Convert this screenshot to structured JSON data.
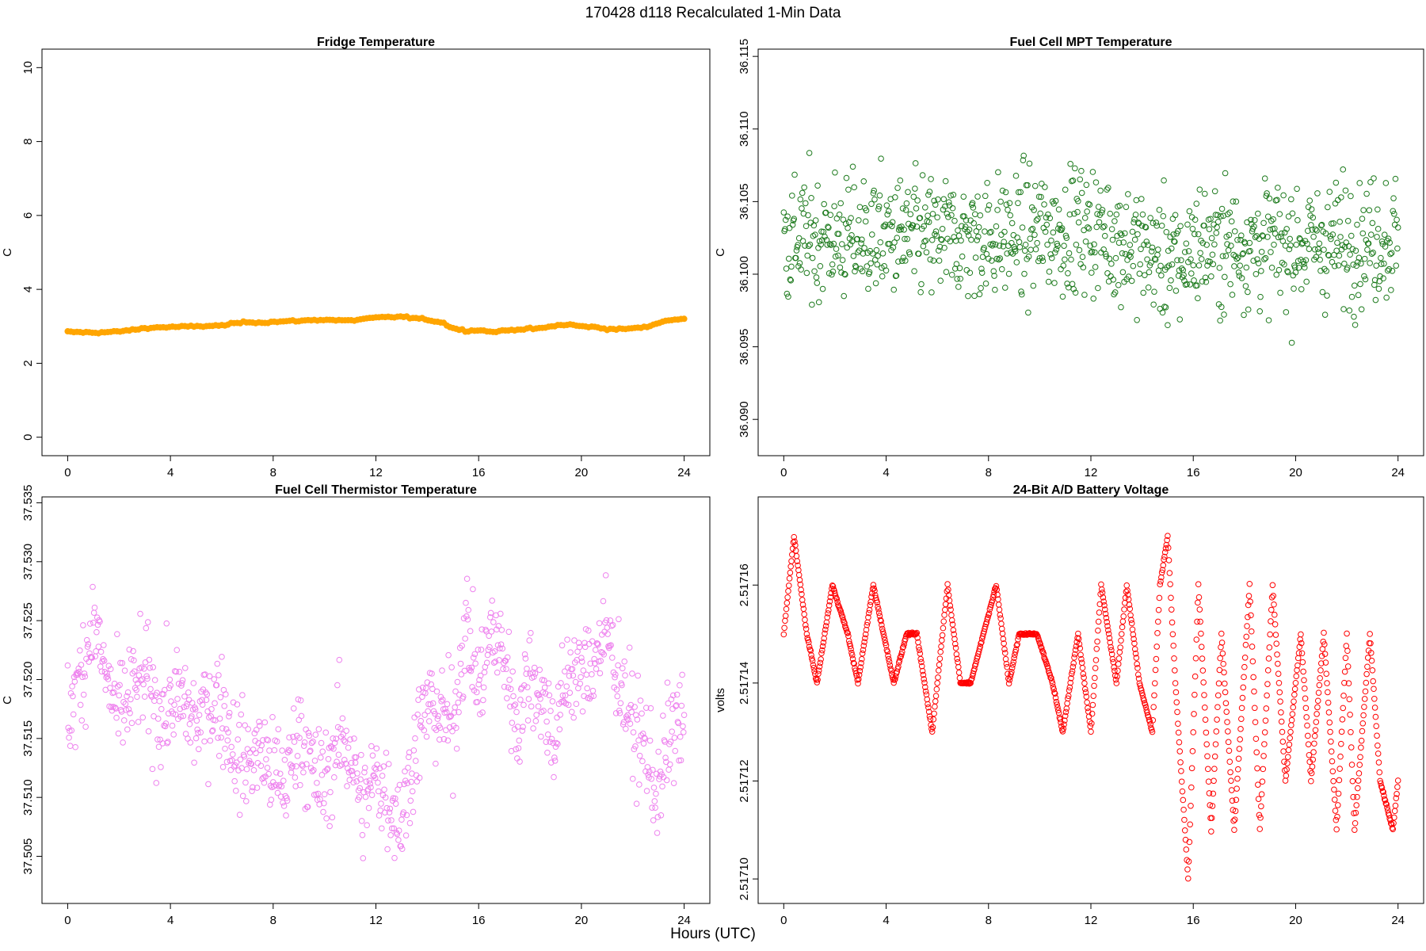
{
  "figure": {
    "title": "170428   d118   Recalculated 1-Min Data",
    "xlabel": "Hours (UTC)"
  },
  "chart_data": [
    {
      "type": "scatter",
      "title": "Fridge Temperature",
      "xlabel": "Hours (UTC)",
      "ylabel": "C",
      "color": "#FFA500",
      "marker": "filled",
      "xlim": [
        -1,
        25
      ],
      "ylim": [
        -0.5,
        10.5
      ],
      "xticks": [
        0,
        4,
        8,
        12,
        16,
        20,
        24
      ],
      "yticks": [
        0,
        2,
        4,
        6,
        8,
        10
      ],
      "ytick_labels": [
        "0",
        "2",
        "4",
        "6",
        "8",
        "10"
      ],
      "x_step": 0.12,
      "noise": 0.02,
      "series": [
        {
          "name": "Fridge Temperature",
          "x": [
            0,
            0.5,
            1,
            1.5,
            2,
            2.5,
            3,
            3.5,
            4,
            5,
            6,
            6.5,
            7,
            7.5,
            8,
            9,
            10,
            11,
            11.5,
            12,
            12.5,
            13,
            14,
            14.6,
            15,
            15.5,
            16,
            16.5,
            17,
            17.5,
            18,
            18.5,
            19,
            19.5,
            20,
            20.5,
            21,
            21.5,
            22,
            22.5,
            23,
            23.5,
            24
          ],
          "y": [
            2.85,
            2.84,
            2.83,
            2.84,
            2.86,
            2.9,
            2.95,
            2.97,
            2.98,
            3.0,
            3.02,
            3.08,
            3.12,
            3.1,
            3.12,
            3.15,
            3.18,
            3.15,
            3.2,
            3.23,
            3.25,
            3.26,
            3.18,
            3.1,
            2.95,
            2.88,
            2.9,
            2.85,
            2.88,
            2.92,
            2.93,
            2.95,
            3.02,
            3.05,
            3.0,
            2.98,
            2.93,
            2.92,
            2.95,
            2.97,
            3.1,
            3.18,
            3.2
          ]
        }
      ]
    },
    {
      "type": "scatter",
      "title": "Fuel Cell MPT Temperature",
      "xlabel": "Hours (UTC)",
      "ylabel": "C",
      "color": "#1E7B1E",
      "marker": "open",
      "xlim": [
        -1,
        25
      ],
      "ylim": [
        36.0875,
        36.1155
      ],
      "xticks": [
        0,
        4,
        8,
        12,
        16,
        20,
        24
      ],
      "yticks": [
        36.09,
        36.095,
        36.1,
        36.105,
        36.11,
        36.115
      ],
      "ytick_labels": [
        "36.090",
        "36.095",
        "36.100",
        "36.105",
        "36.110",
        "36.115"
      ],
      "x_step": 0.025,
      "noise": 0.0036,
      "series": [
        {
          "name": "Fuel Cell MPT Temperature",
          "x": [
            0,
            4,
            8,
            12,
            15.5,
            16,
            20,
            24
          ],
          "y": [
            36.1025,
            36.1025,
            36.1025,
            36.1032,
            36.1005,
            36.102,
            36.102,
            36.1025
          ]
        }
      ]
    },
    {
      "type": "scatter",
      "title": "Fuel Cell Thermistor Temperature",
      "xlabel": "Hours (UTC)",
      "ylabel": "C",
      "color": "#EE82EE",
      "marker": "open",
      "xlim": [
        -1,
        25
      ],
      "ylim": [
        37.501,
        37.5355
      ],
      "xticks": [
        0,
        4,
        8,
        12,
        16,
        20,
        24
      ],
      "yticks": [
        37.505,
        37.51,
        37.515,
        37.52,
        37.525,
        37.53,
        37.535
      ],
      "ytick_labels": [
        "37.505",
        "37.510",
        "37.515",
        "37.520",
        "37.525",
        "37.530",
        "37.535"
      ],
      "x_step": 0.025,
      "noise": 0.0038,
      "series": [
        {
          "name": "Fuel Cell Thermistor Temperature",
          "x": [
            0,
            0.5,
            1,
            1.5,
            2,
            2.5,
            3,
            3.5,
            4,
            4.5,
            5,
            5.5,
            6,
            6.5,
            7,
            7.5,
            8,
            8.5,
            9,
            9.5,
            10,
            10.5,
            11,
            11.5,
            12,
            12.5,
            13,
            13.5,
            14,
            14.5,
            15,
            15.5,
            16,
            16.5,
            17,
            17.5,
            18,
            18.5,
            19,
            19.5,
            20,
            20.5,
            21,
            21.5,
            22,
            22.5,
            23,
            23.5,
            24
          ],
          "y": [
            37.517,
            37.52,
            37.525,
            37.52,
            37.517,
            37.519,
            37.52,
            37.517,
            37.518,
            37.518,
            37.516,
            37.518,
            37.518,
            37.514,
            37.513,
            37.514,
            37.512,
            37.511,
            37.516,
            37.512,
            37.511,
            37.515,
            37.514,
            37.509,
            37.512,
            37.51,
            37.508,
            37.514,
            37.518,
            37.517,
            37.516,
            37.525,
            37.519,
            37.524,
            37.522,
            37.516,
            37.521,
            37.518,
            37.515,
            37.521,
            37.52,
            37.522,
            37.524,
            37.52,
            37.516,
            37.514,
            37.51,
            37.516,
            37.516
          ]
        }
      ]
    },
    {
      "type": "scatter",
      "title": "24-Bit A/D Battery Voltage",
      "xlabel": "Hours (UTC)",
      "ylabel": "volts",
      "color": "#FF0000",
      "marker": "open",
      "xlim": [
        -1,
        25
      ],
      "ylim": [
        2.517095,
        2.517178
      ],
      "xticks": [
        0,
        4,
        8,
        12,
        16,
        20,
        24
      ],
      "yticks": [
        2.5171,
        2.51712,
        2.51714,
        2.51716
      ],
      "ytick_labels": [
        "2.51710",
        "2.51712",
        "2.51714",
        "2.51716"
      ],
      "x_step": 0.025,
      "noise": 2e-07,
      "series": [
        {
          "name": "24-Bit A/D Battery Voltage",
          "x": [
            0,
            0.4,
            0.9,
            1.3,
            1.9,
            2.5,
            2.9,
            3.5,
            3.9,
            4.3,
            4.8,
            5.2,
            5.8,
            6.4,
            6.9,
            7.3,
            7.8,
            8.3,
            8.8,
            9.2,
            9.9,
            10.5,
            10.9,
            11.5,
            12.0,
            12.4,
            13.0,
            13.4,
            13.9,
            14.4,
            14.7,
            15.0,
            15.3,
            15.8,
            16.2,
            16.7,
            17.1,
            17.6,
            18.2,
            18.6,
            19.1,
            19.6,
            20.2,
            20.6,
            21.1,
            21.6,
            22.0,
            22.3,
            22.6,
            22.9,
            23.3,
            23.8,
            24.0
          ],
          "y": [
            2.51715,
            2.51717,
            2.51715,
            2.51714,
            2.51716,
            2.51715,
            2.51714,
            2.51716,
            2.51715,
            2.51714,
            2.51715,
            2.51715,
            2.51713,
            2.51716,
            2.51714,
            2.51714,
            2.51715,
            2.51716,
            2.51714,
            2.51715,
            2.51715,
            2.51714,
            2.51713,
            2.51715,
            2.51713,
            2.51716,
            2.51714,
            2.51716,
            2.51714,
            2.51713,
            2.51716,
            2.51717,
            2.51714,
            2.5171,
            2.51716,
            2.51711,
            2.51715,
            2.51711,
            2.51716,
            2.51711,
            2.51716,
            2.51712,
            2.51715,
            2.51712,
            2.51715,
            2.51711,
            2.51715,
            2.51711,
            2.51713,
            2.51715,
            2.51712,
            2.51711,
            2.51712
          ]
        }
      ]
    }
  ]
}
